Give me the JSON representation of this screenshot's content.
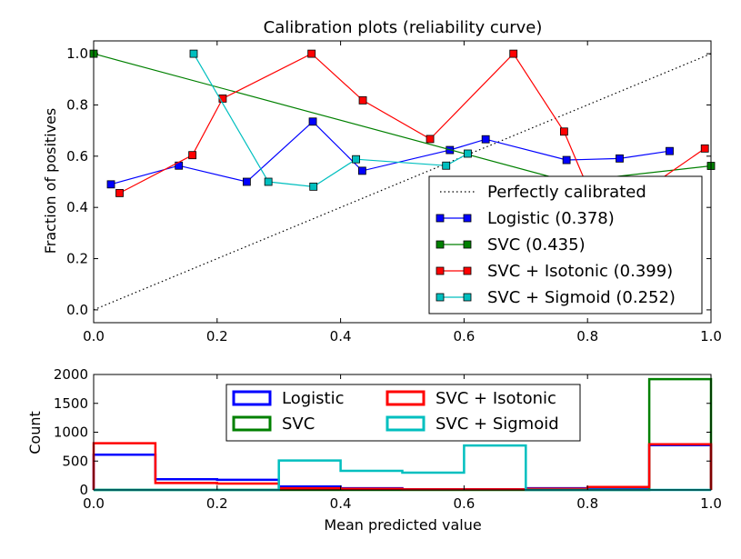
{
  "colors": {
    "logistic": "#0000ff",
    "svc": "#008000",
    "isotonic": "#ff0000",
    "sigmoid": "#00bfbf",
    "reference": "#000000"
  },
  "chart_data": [
    {
      "type": "line",
      "title": "Calibration plots  (reliability curve)",
      "xlabel": "",
      "ylabel": "Fraction of positives",
      "xlim": [
        0.0,
        1.0
      ],
      "ylim": [
        -0.05,
        1.05
      ],
      "xticks": [
        "0.0",
        "0.2",
        "0.4",
        "0.6",
        "0.8",
        "1.0"
      ],
      "yticks": [
        "0.0",
        "0.2",
        "0.4",
        "0.6",
        "0.8",
        "1.0"
      ],
      "legend_position": "lower-right",
      "reference": {
        "name": "Perfectly calibrated",
        "x": [
          0,
          1
        ],
        "y": [
          0,
          1
        ],
        "style": "dotted"
      },
      "series": [
        {
          "name": "Logistic (0.378)",
          "color_key": "logistic",
          "marker": "square",
          "x": [
            0.028,
            0.138,
            0.248,
            0.355,
            0.435,
            0.577,
            0.635,
            0.766,
            0.852,
            0.933
          ],
          "y": [
            0.49,
            0.563,
            0.5,
            0.735,
            0.543,
            0.624,
            0.666,
            0.585,
            0.591,
            0.62
          ]
        },
        {
          "name": "SVC (0.435)",
          "color_key": "svc",
          "marker": "square",
          "x": [
            0.0,
            0.77,
            1.0
          ],
          "y": [
            1.0,
            0.5,
            0.562
          ]
        },
        {
          "name": "SVC + Isotonic (0.399)",
          "color_key": "isotonic",
          "marker": "square",
          "x": [
            0.042,
            0.16,
            0.209,
            0.353,
            0.436,
            0.545,
            0.68,
            0.762,
            0.8,
            0.9,
            0.99
          ],
          "y": [
            0.456,
            0.604,
            0.825,
            1.0,
            0.818,
            0.667,
            1.0,
            0.696,
            0.48,
            0.48,
            0.63
          ]
        },
        {
          "name": "SVC + Sigmoid (0.252)",
          "color_key": "sigmoid",
          "marker": "square",
          "x": [
            0.162,
            0.283,
            0.356,
            0.425,
            0.571,
            0.606
          ],
          "y": [
            1.0,
            0.5,
            0.481,
            0.588,
            0.563,
            0.61
          ]
        }
      ]
    },
    {
      "type": "histogram",
      "title": "",
      "xlabel": "Mean predicted value",
      "ylabel": "Count",
      "xlim": [
        0.0,
        1.0
      ],
      "ylim": [
        0,
        2000
      ],
      "xticks": [
        "0.0",
        "0.2",
        "0.4",
        "0.6",
        "0.8",
        "1.0"
      ],
      "yticks": [
        "0",
        "500",
        "1000",
        "1500",
        "2000"
      ],
      "legend_position": "upper-center",
      "legend_columns": 2,
      "bins": [
        0.0,
        0.1,
        0.2,
        0.3,
        0.4,
        0.5,
        0.6,
        0.7,
        0.8,
        0.9,
        1.0
      ],
      "series": [
        {
          "name": "Logistic",
          "color_key": "logistic",
          "counts": [
            610,
            185,
            175,
            60,
            30,
            10,
            10,
            30,
            40,
            775
          ]
        },
        {
          "name": "SVC",
          "color_key": "svc",
          "counts": [
            0,
            0,
            0,
            0,
            0,
            0,
            0,
            0,
            0,
            1920
          ]
        },
        {
          "name": "SVC + Isotonic",
          "color_key": "isotonic",
          "counts": [
            810,
            120,
            110,
            30,
            20,
            10,
            10,
            20,
            50,
            790
          ]
        },
        {
          "name": "SVC + Sigmoid",
          "color_key": "sigmoid",
          "counts": [
            0,
            0,
            0,
            510,
            330,
            300,
            770,
            0,
            0,
            0
          ]
        }
      ]
    }
  ]
}
